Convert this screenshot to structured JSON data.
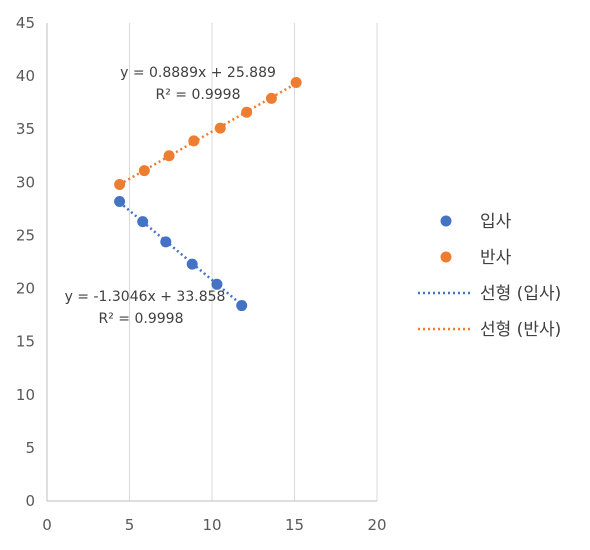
{
  "chart_data": {
    "type": "scatter",
    "title": "",
    "xlabel": "",
    "ylabel": "",
    "xlim": [
      0,
      20
    ],
    "ylim": [
      0,
      45
    ],
    "xticks": [
      0,
      5,
      10,
      15,
      20
    ],
    "yticks": [
      0,
      5,
      10,
      15,
      20,
      25,
      30,
      35,
      40,
      45
    ],
    "grid": "vertical",
    "legend": "right",
    "series": [
      {
        "name": "입사",
        "color": "#4472C4",
        "x": [
          4.4,
          5.8,
          7.2,
          8.8,
          10.3,
          11.8
        ],
        "y": [
          28.2,
          26.3,
          24.4,
          22.3,
          20.4,
          18.4
        ]
      },
      {
        "name": "반사",
        "color": "#ED7D31",
        "x": [
          4.4,
          5.9,
          7.4,
          8.9,
          10.5,
          12.1,
          13.6,
          15.1
        ],
        "y": [
          29.8,
          31.1,
          32.5,
          33.9,
          35.1,
          36.6,
          37.9,
          39.4
        ]
      }
    ],
    "trendlines": [
      {
        "name": "선형 (입사)",
        "color": "#4472C4",
        "slope": -1.3046,
        "intercept": 33.858,
        "x_range": [
          4.4,
          11.8
        ],
        "equation": "y = -1.3046x + 33.858",
        "r2": "R² = 0.9998"
      },
      {
        "name": "선형 (반사)",
        "color": "#ED7D31",
        "slope": 0.8889,
        "intercept": 25.889,
        "x_range": [
          4.4,
          15.1
        ],
        "equation": "y = 0.8889x + 25.889",
        "r2": "R² = 0.9998"
      }
    ]
  }
}
